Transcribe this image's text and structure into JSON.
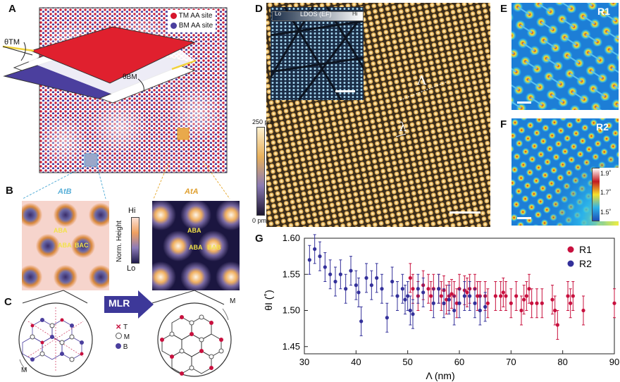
{
  "panels": {
    "a": {
      "label": "A",
      "legend": [
        "TM AA site",
        "BM AA site"
      ],
      "theta_tm": "θTM",
      "theta_bm": "θBM"
    },
    "b": {
      "label": "B",
      "left_title": "AtB",
      "right_title": "AtA",
      "left_sites": [
        "ABA",
        "ABA",
        "BAC"
      ],
      "right_sites": [
        "ABA",
        "ABA",
        "BAB"
      ],
      "colorbar": {
        "hi": "Hi",
        "lo": "Lo",
        "title": "Norm. Height"
      }
    },
    "c": {
      "label": "C",
      "arrow": "MLR",
      "legend": [
        "T",
        "M",
        "B"
      ],
      "corner_left": "M",
      "corner_right": "M"
    },
    "d": {
      "label": "D",
      "colorbar_top": "250 pm",
      "colorbar_bottom": "0 pm",
      "inset": {
        "lo": "Lo",
        "title": "LDOS (EF)",
        "hi": "Hi"
      },
      "Lambda": "Λ",
      "lambda": "λ"
    },
    "e": {
      "label": "E",
      "tag": "R1"
    },
    "f": {
      "label": "F",
      "tag": "R2",
      "scale": [
        "1.9˚",
        "1.7˚",
        "1.5˚"
      ]
    },
    "g": {
      "label": "G"
    }
  },
  "colors": {
    "R1": "#c8103e",
    "R2": "#33309a",
    "tm_red": "#d6152c",
    "bm_blue": "#4b3f9e",
    "stm_gold": "#e3b35a"
  },
  "chart_data": {
    "type": "scatter",
    "xlabel": "Λ (nm)",
    "ylabel": "θI (˚)",
    "xlim": [
      30,
      90
    ],
    "ylim": [
      1.44,
      1.6
    ],
    "xticks": [
      "30",
      "40",
      "50",
      "60",
      "70",
      "80",
      "90"
    ],
    "yticks": [
      "1.45",
      "1.50",
      "1.55",
      "1.60"
    ],
    "legend_position": "top-right",
    "series": [
      {
        "name": "R1",
        "color": "#c8103e",
        "x": [
          50.5,
          51,
          52,
          53,
          54,
          54.5,
          55,
          56,
          56.5,
          57,
          57.5,
          58,
          58.5,
          59,
          59.5,
          60,
          61,
          61.5,
          62,
          63,
          63.5,
          64,
          65,
          65.5,
          67,
          68,
          68.5,
          69,
          70,
          71,
          72,
          72.5,
          73,
          73.5,
          74,
          75,
          76,
          78,
          78.5,
          79,
          81,
          81.5,
          82,
          84,
          90
        ],
        "y": [
          1.545,
          1.53,
          1.52,
          1.535,
          1.53,
          1.52,
          1.53,
          1.53,
          1.52,
          1.528,
          1.515,
          1.52,
          1.523,
          1.52,
          1.51,
          1.53,
          1.528,
          1.525,
          1.53,
          1.53,
          1.52,
          1.52,
          1.52,
          1.51,
          1.52,
          1.52,
          1.525,
          1.52,
          1.51,
          1.52,
          1.5,
          1.515,
          1.52,
          1.53,
          1.51,
          1.51,
          1.51,
          1.515,
          1.5,
          1.48,
          1.52,
          1.51,
          1.52,
          1.5,
          1.51
        ],
        "err": [
          0.02,
          0.02,
          0.02,
          0.02,
          0.02,
          0.02,
          0.02,
          0.02,
          0.02,
          0.02,
          0.02,
          0.02,
          0.02,
          0.02,
          0.02,
          0.02,
          0.02,
          0.02,
          0.02,
          0.02,
          0.02,
          0.02,
          0.02,
          0.02,
          0.02,
          0.02,
          0.02,
          0.02,
          0.02,
          0.02,
          0.02,
          0.02,
          0.02,
          0.02,
          0.02,
          0.02,
          0.02,
          0.02,
          0.02,
          0.02,
          0.02,
          0.02,
          0.02,
          0.02,
          0.02
        ]
      },
      {
        "name": "R2",
        "color": "#33309a",
        "x": [
          31,
          32,
          33,
          34,
          35,
          36,
          37,
          38,
          39,
          40,
          40.5,
          41,
          42,
          43,
          44,
          45,
          46,
          47,
          48,
          49,
          49.5,
          50,
          50.5,
          51,
          52,
          53,
          55,
          56,
          57,
          58,
          59,
          60,
          61,
          62,
          63,
          64,
          65
        ],
        "y": [
          1.57,
          1.585,
          1.575,
          1.56,
          1.55,
          1.54,
          1.55,
          1.53,
          1.555,
          1.535,
          1.525,
          1.485,
          1.545,
          1.535,
          1.545,
          1.53,
          1.49,
          1.54,
          1.52,
          1.53,
          1.515,
          1.52,
          1.5,
          1.495,
          1.53,
          1.525,
          1.51,
          1.53,
          1.51,
          1.515,
          1.5,
          1.51,
          1.52,
          1.52,
          1.51,
          1.5,
          1.505
        ],
        "err": [
          0.02,
          0.02,
          0.02,
          0.02,
          0.02,
          0.02,
          0.02,
          0.02,
          0.02,
          0.02,
          0.02,
          0.02,
          0.02,
          0.02,
          0.02,
          0.02,
          0.02,
          0.02,
          0.02,
          0.02,
          0.02,
          0.02,
          0.02,
          0.02,
          0.02,
          0.02,
          0.02,
          0.02,
          0.02,
          0.02,
          0.02,
          0.02,
          0.02,
          0.02,
          0.02,
          0.02,
          0.02
        ]
      }
    ]
  }
}
